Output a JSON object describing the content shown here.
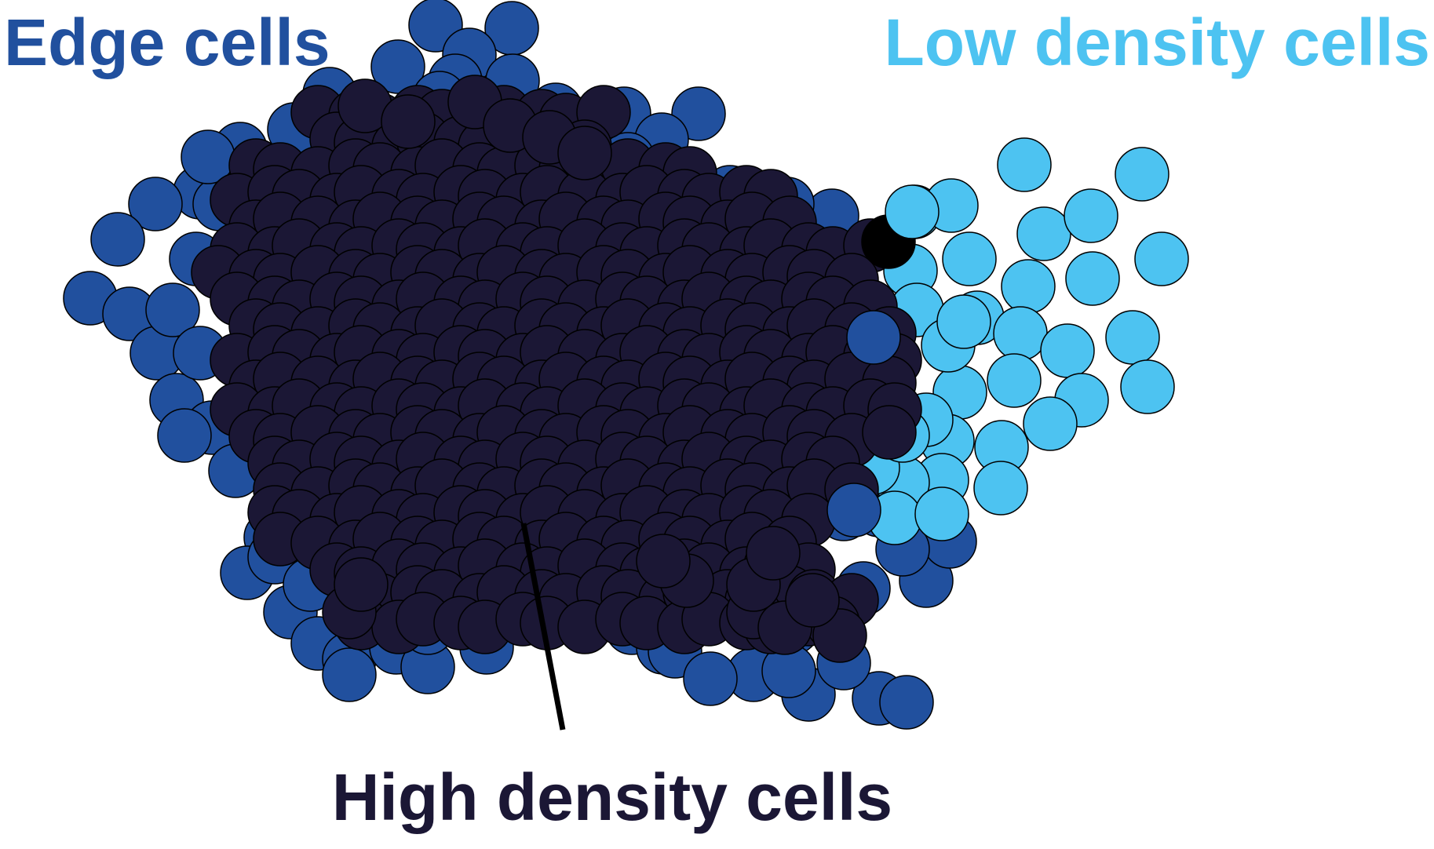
{
  "labels": {
    "edge": "Edge cells",
    "low": "Low density cells",
    "high": "High density cells"
  },
  "colors": {
    "edge": "#21509E",
    "low": "#4DC3F1",
    "high": "#1B1735",
    "marker": "#000000",
    "outline": "#000000",
    "pointer": "#000000"
  }
}
